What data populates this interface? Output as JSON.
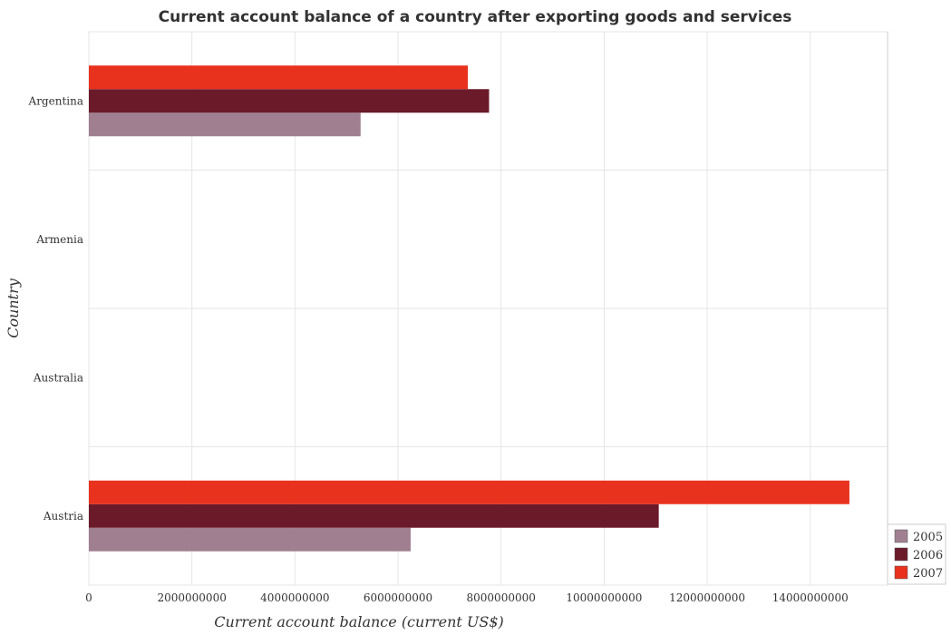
{
  "chart_data": {
    "type": "bar",
    "orientation": "horizontal",
    "title": "Current account balance of a country after exporting goods and services",
    "xlabel": "Current account balance (current US$)",
    "ylabel": "Country",
    "categories": [
      "Argentina",
      "Armenia",
      "Australia",
      "Austria"
    ],
    "series": [
      {
        "name": "2005",
        "color": "#a08090",
        "values": [
          5274000000,
          0,
          0,
          6245000000
        ]
      },
      {
        "name": "2006",
        "color": "#6b1a2a",
        "values": [
          7767000000,
          0,
          0,
          11060000000
        ]
      },
      {
        "name": "2007",
        "color": "#e8321e",
        "values": [
          7354000000,
          0,
          0,
          14760000000
        ]
      }
    ],
    "xlim": [
      0,
      15500000000
    ],
    "xticks": [
      0,
      2000000000,
      4000000000,
      6000000000,
      8000000000,
      10000000000,
      12000000000,
      14000000000
    ],
    "xtick_labels": [
      "0",
      "2000000000",
      "4000000000",
      "6000000000",
      "8000000000",
      "10000000000",
      "12000000000",
      "14000000000"
    ],
    "grid": true,
    "legend_position": "bottom-right"
  }
}
